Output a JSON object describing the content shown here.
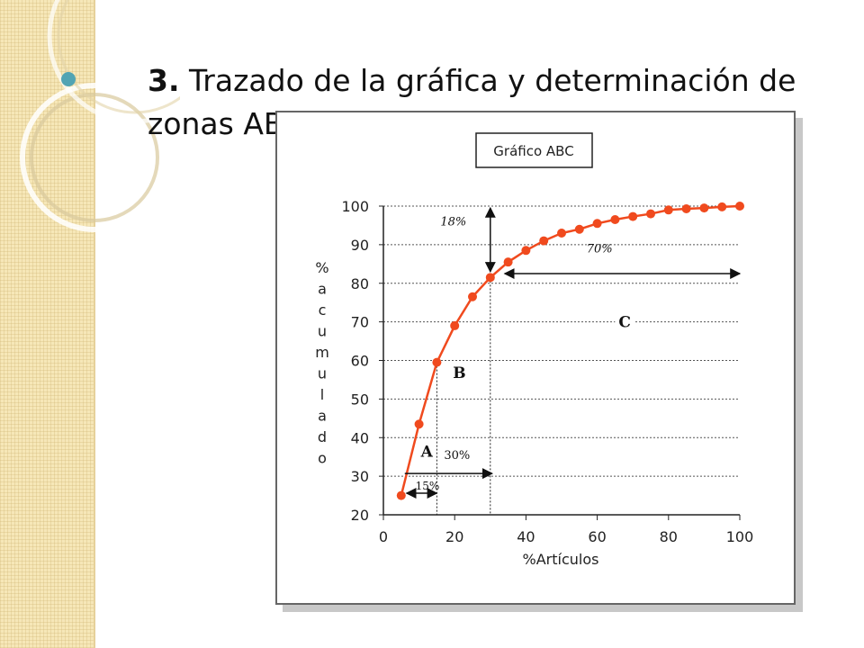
{
  "slide": {
    "number": "3.",
    "title_line1": "Trazado de la gráfica y determinación de",
    "title_line2": "zonas ABC:"
  },
  "colors": {
    "accent_bullet": "#52a4b3",
    "series": "#f04a1e",
    "strip": "#f6e7b8"
  },
  "chart_data": {
    "type": "line",
    "title": "Gráfico ABC",
    "xlabel": "%Artículos",
    "ylabel": "% a c u m u l a d o",
    "ylabel_letters": [
      "%",
      "a",
      "c",
      "u",
      "m",
      "u",
      "l",
      "a",
      "d",
      "o"
    ],
    "xlim": [
      0,
      100
    ],
    "ylim": [
      20,
      100
    ],
    "xticks": [
      0,
      20,
      40,
      60,
      80,
      100
    ],
    "yticks": [
      20,
      30,
      40,
      50,
      60,
      70,
      80,
      90,
      100
    ],
    "grid": "horizontal dotted",
    "series": [
      {
        "name": "% acumulado",
        "x": [
          5,
          10,
          15,
          20,
          25,
          30,
          35,
          40,
          45,
          50,
          55,
          60,
          65,
          70,
          75,
          80,
          85,
          90,
          95,
          100
        ],
        "y": [
          25,
          43.5,
          59.5,
          69,
          76.5,
          81.5,
          85.5,
          88.5,
          91,
          93,
          94,
          95.5,
          96.5,
          97.3,
          98,
          99,
          99.3,
          99.5,
          99.8,
          100
        ]
      }
    ],
    "annotations": {
      "zone_a": "A",
      "zone_b": "B",
      "zone_c": "C",
      "pct_a_x": "15%",
      "pct_a_y": "30%",
      "pct_b_y": "18%",
      "pct_c_y": "70%"
    },
    "reference_lines_x": [
      15,
      30
    ]
  }
}
